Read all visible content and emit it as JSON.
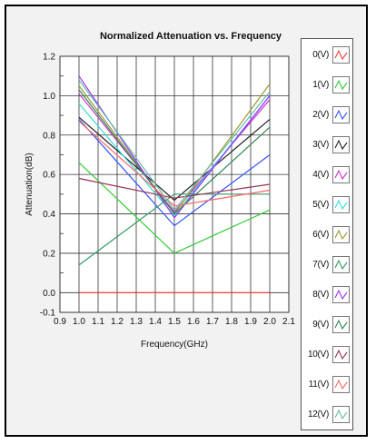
{
  "chart_data": {
    "type": "line",
    "title": "Normalized Attenuation vs. Frequency",
    "xlabel": "Frequency(GHz)",
    "ylabel": "Attenuation(dB)",
    "xlim": [
      0.9,
      2.1
    ],
    "ylim": [
      -0.1,
      1.2
    ],
    "x_ticks": [
      "0.9",
      "1.0",
      "1.1",
      "1.2",
      "1.3",
      "1.4",
      "1.5",
      "1.6",
      "1.7",
      "1.8",
      "1.9",
      "2.0",
      "2.1"
    ],
    "y_ticks": [
      "-0.1",
      "0.0",
      "0.2",
      "0.4",
      "0.6",
      "0.8",
      "1.0",
      "1.2"
    ],
    "x_tick_values": [
      0.9,
      1.0,
      1.1,
      1.2,
      1.3,
      1.4,
      1.5,
      1.6,
      1.7,
      1.8,
      1.9,
      2.0,
      2.1
    ],
    "y_tick_values": [
      -0.1,
      0.0,
      0.2,
      0.4,
      0.6,
      0.8,
      1.0,
      1.2
    ],
    "grid": true,
    "legend_position": "right",
    "x": [
      1.0,
      1.5,
      2.0
    ],
    "series": [
      {
        "name": "0(V)",
        "color": "#ff3b3b",
        "values": [
          0.0,
          0.0,
          0.0
        ]
      },
      {
        "name": "1(V)",
        "color": "#33cc33",
        "values": [
          0.66,
          0.2,
          0.42
        ]
      },
      {
        "name": "2(V)",
        "color": "#3355ff",
        "values": [
          0.88,
          0.34,
          0.7
        ]
      },
      {
        "name": "3(V)",
        "color": "#222222",
        "values": [
          0.89,
          0.47,
          0.88
        ]
      },
      {
        "name": "4(V)",
        "color": "#cc33cc",
        "values": [
          1.01,
          0.41,
          0.98
        ]
      },
      {
        "name": "5(V)",
        "color": "#33dddd",
        "values": [
          0.96,
          0.39,
          1.0
        ]
      },
      {
        "name": "6(V)",
        "color": "#999933",
        "values": [
          1.05,
          0.4,
          1.06
        ]
      },
      {
        "name": "7(V)",
        "color": "#339966",
        "values": [
          0.14,
          0.5,
          0.5
        ]
      },
      {
        "name": "8(V)",
        "color": "#9933ff",
        "values": [
          1.1,
          0.38,
          1.0
        ]
      },
      {
        "name": "9(V)",
        "color": "#338855",
        "values": [
          1.03,
          0.4,
          0.84
        ]
      },
      {
        "name": "10(V)",
        "color": "#993355",
        "values": [
          0.58,
          0.48,
          0.55
        ]
      },
      {
        "name": "11(V)",
        "color": "#ff6666",
        "values": [
          0.87,
          0.44,
          0.52
        ]
      },
      {
        "name": "12(V)",
        "color": "#66bbaa",
        "values": [
          1.08,
          0.42,
          1.02
        ]
      }
    ]
  }
}
